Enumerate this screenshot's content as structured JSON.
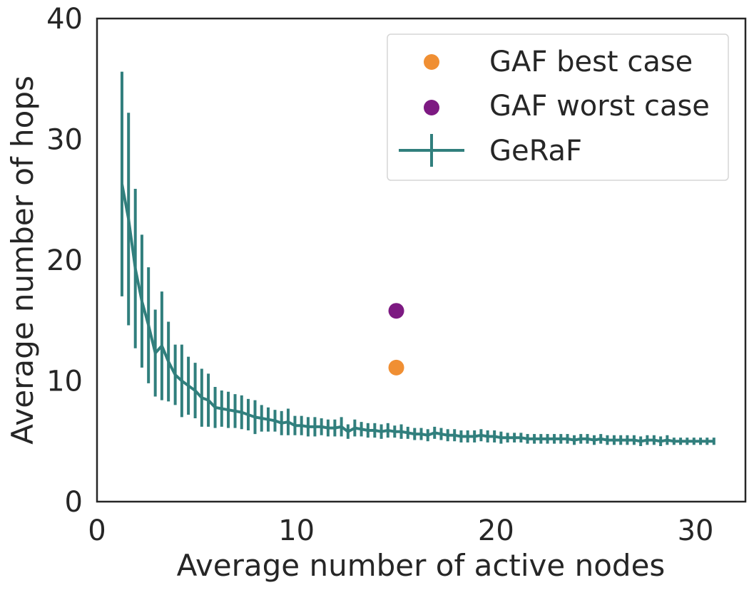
{
  "chart_data": {
    "type": "scatter",
    "title": "",
    "xlabel": "Average number of active nodes",
    "ylabel": "Average number of hops",
    "xlim": [
      0,
      32.5
    ],
    "ylim": [
      0,
      40
    ],
    "xticks": [
      0,
      10,
      20,
      30
    ],
    "yticks": [
      0,
      10,
      20,
      30,
      40
    ],
    "grid": false,
    "legend_position": "top-right",
    "series": [
      {
        "name": "GAF best case",
        "kind": "point",
        "color": "#f08f33",
        "points": [
          {
            "x": 15.0,
            "y": 11.1
          }
        ]
      },
      {
        "name": "GAF worst case",
        "kind": "point",
        "color": "#7d1a82",
        "points": [
          {
            "x": 15.0,
            "y": 15.8
          }
        ]
      },
      {
        "name": "GeRaF",
        "kind": "errorbar-line",
        "color": "#317f7d",
        "x": [
          1.25,
          1.58,
          1.92,
          2.25,
          2.58,
          2.92,
          3.25,
          3.58,
          3.92,
          4.25,
          4.58,
          4.92,
          5.25,
          5.58,
          5.92,
          6.25,
          6.58,
          6.92,
          7.25,
          7.58,
          7.92,
          8.25,
          8.58,
          8.92,
          9.25,
          9.58,
          9.92,
          10.25,
          10.58,
          10.92,
          11.25,
          11.58,
          11.92,
          12.25,
          12.58,
          12.92,
          13.25,
          13.58,
          13.92,
          14.25,
          14.58,
          14.92,
          15.25,
          15.58,
          15.92,
          16.25,
          16.58,
          16.92,
          17.25,
          17.58,
          17.92,
          18.25,
          18.58,
          18.92,
          19.25,
          19.58,
          19.92,
          20.25,
          20.58,
          20.92,
          21.25,
          21.58,
          21.92,
          22.25,
          22.58,
          22.92,
          23.25,
          23.58,
          23.92,
          24.25,
          24.58,
          24.92,
          25.25,
          25.58,
          25.92,
          26.25,
          26.58,
          26.92,
          27.25,
          27.58,
          27.92,
          28.25,
          28.58,
          28.92,
          29.25,
          29.58,
          29.92,
          30.25,
          30.58,
          30.92
        ],
        "y": [
          26.3,
          23.4,
          19.3,
          16.6,
          14.6,
          12.3,
          12.9,
          11.6,
          10.5,
          10.0,
          9.6,
          9.2,
          8.6,
          8.4,
          7.8,
          7.7,
          7.6,
          7.5,
          7.4,
          7.2,
          7.0,
          6.9,
          6.8,
          6.7,
          6.5,
          6.6,
          6.3,
          6.3,
          6.2,
          6.2,
          6.2,
          6.1,
          6.1,
          6.2,
          5.8,
          6.1,
          6.0,
          5.9,
          5.9,
          5.8,
          5.9,
          5.8,
          5.8,
          5.7,
          5.6,
          5.6,
          5.5,
          5.7,
          5.6,
          5.5,
          5.5,
          5.4,
          5.4,
          5.4,
          5.5,
          5.4,
          5.4,
          5.3,
          5.3,
          5.3,
          5.3,
          5.2,
          5.2,
          5.2,
          5.2,
          5.2,
          5.2,
          5.2,
          5.1,
          5.2,
          5.2,
          5.1,
          5.2,
          5.1,
          5.1,
          5.1,
          5.1,
          5.1,
          5.0,
          5.1,
          5.1,
          5.0,
          5.1,
          5.0,
          5.0,
          5.0,
          5.0,
          5.0,
          5.0,
          5.0
        ],
        "yerr": [
          9.3,
          8.8,
          6.6,
          5.5,
          4.8,
          3.6,
          4.5,
          3.3,
          2.5,
          3.0,
          2.4,
          2.3,
          2.4,
          2.2,
          1.7,
          1.5,
          1.5,
          1.4,
          1.4,
          1.3,
          1.4,
          1.1,
          1.0,
          0.9,
          1.0,
          1.1,
          0.8,
          0.8,
          0.8,
          0.8,
          0.7,
          0.7,
          0.7,
          0.8,
          0.6,
          0.7,
          0.6,
          0.6,
          0.6,
          0.6,
          0.6,
          0.5,
          0.6,
          0.5,
          0.5,
          0.5,
          0.5,
          0.5,
          0.5,
          0.5,
          0.5,
          0.5,
          0.5,
          0.5,
          0.5,
          0.5,
          0.5,
          0.5,
          0.4,
          0.4,
          0.4,
          0.4,
          0.4,
          0.4,
          0.4,
          0.4,
          0.4,
          0.4,
          0.4,
          0.4,
          0.4,
          0.4,
          0.4,
          0.4,
          0.4,
          0.4,
          0.4,
          0.4,
          0.4,
          0.4,
          0.4,
          0.4,
          0.4,
          0.3,
          0.3,
          0.3,
          0.3,
          0.3,
          0.3,
          0.3
        ]
      }
    ]
  }
}
